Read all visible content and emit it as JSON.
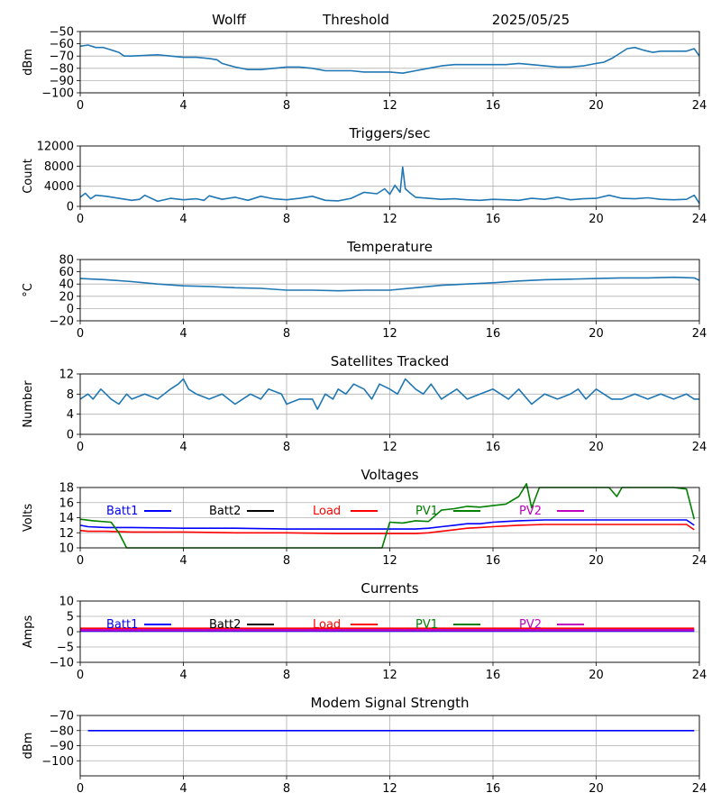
{
  "header": {
    "station": "Wolff",
    "mode": "Threshold",
    "date": "2025/05/25"
  },
  "colors": {
    "default_line": "#1f77b4",
    "grid": "#b0b0b0",
    "batt1": "#0000ff",
    "batt2": "#000000",
    "load": "#ff0000",
    "pv1": "#008000",
    "pv2": "#bf00bf"
  },
  "chart_data": [
    {
      "id": "threshold",
      "type": "line",
      "title": "",
      "ylabel": "dBm",
      "xlim": [
        0,
        24
      ],
      "ylim": [
        -100,
        -50
      ],
      "xticks": [
        "0",
        "4",
        "8",
        "12",
        "16",
        "20",
        "24"
      ],
      "yticks": [
        "−100",
        "−90",
        "−80",
        "−70",
        "−60",
        "−50"
      ],
      "grid": true,
      "series": [
        {
          "x": [
            0,
            0.3,
            0.6,
            0.9,
            1.2,
            1.5,
            1.7,
            2,
            3,
            4,
            4.5,
            5,
            5.3,
            5.5,
            6,
            6.5,
            7,
            7.5,
            8,
            8.5,
            9,
            9.5,
            10,
            10.5,
            11,
            11.5,
            12,
            12.5,
            13,
            13.5,
            14,
            14.5,
            15,
            15.5,
            16,
            16.5,
            17,
            17.5,
            18,
            18.5,
            19,
            19.5,
            20,
            20.3,
            20.6,
            20.9,
            21.2,
            21.5,
            21.8,
            22,
            22.2,
            22.5,
            23,
            23.5,
            23.8,
            24
          ],
          "values": [
            -62,
            -61,
            -63,
            -63,
            -65,
            -67,
            -70,
            -70,
            -69,
            -71,
            -71,
            -72,
            -73,
            -76,
            -79,
            -81,
            -81,
            -80,
            -79,
            -79,
            -80,
            -82,
            -82,
            -82,
            -83,
            -83,
            -83,
            -84,
            -82,
            -80,
            -78,
            -77,
            -77,
            -77,
            -77,
            -77,
            -76,
            -77,
            -78,
            -79,
            -79,
            -78,
            -76,
            -75,
            -72,
            -68,
            -64,
            -63,
            -65,
            -66,
            -67,
            -66,
            -66,
            -66,
            -64,
            -70
          ]
        }
      ]
    },
    {
      "id": "triggers",
      "type": "line",
      "title": "Triggers/sec",
      "ylabel": "Count",
      "xlim": [
        0,
        24
      ],
      "ylim": [
        0,
        12000
      ],
      "xticks": [
        "0",
        "4",
        "8",
        "12",
        "16",
        "20",
        "24"
      ],
      "yticks": [
        "0",
        "4000",
        "8000",
        "12000"
      ],
      "grid": true,
      "series": [
        {
          "x": [
            0,
            0.2,
            0.4,
            0.6,
            1,
            1.5,
            2,
            2.3,
            2.5,
            3,
            3.5,
            4,
            4.5,
            4.8,
            5,
            5.5,
            6,
            6.5,
            7,
            7.5,
            8,
            8.5,
            9,
            9.5,
            10,
            10.5,
            11,
            11.5,
            11.8,
            12,
            12.2,
            12.4,
            12.5,
            12.6,
            12.8,
            13,
            13.5,
            14,
            14.5,
            15,
            15.5,
            16,
            16.5,
            17,
            17.5,
            18,
            18.5,
            19,
            19.5,
            20,
            20.5,
            21,
            21.5,
            22,
            22.5,
            23,
            23.5,
            23.8,
            24
          ],
          "values": [
            1800,
            2600,
            1500,
            2200,
            2000,
            1600,
            1200,
            1400,
            2200,
            1000,
            1600,
            1300,
            1500,
            1200,
            2100,
            1400,
            1800,
            1200,
            2000,
            1500,
            1300,
            1600,
            2000,
            1200,
            1100,
            1600,
            2800,
            2500,
            3500,
            2400,
            4200,
            2800,
            7800,
            3500,
            2600,
            1800,
            1600,
            1400,
            1500,
            1300,
            1200,
            1400,
            1300,
            1200,
            1600,
            1400,
            1800,
            1300,
            1500,
            1600,
            2200,
            1600,
            1500,
            1700,
            1400,
            1300,
            1400,
            2200,
            600
          ]
        }
      ]
    },
    {
      "id": "temperature",
      "type": "line",
      "title": "Temperature",
      "ylabel": "°C",
      "xlim": [
        0,
        24
      ],
      "ylim": [
        -20,
        80
      ],
      "xticks": [
        "0",
        "4",
        "8",
        "12",
        "16",
        "20",
        "24"
      ],
      "yticks": [
        "−20",
        "0",
        "20",
        "40",
        "60",
        "80"
      ],
      "grid": true,
      "series": [
        {
          "x": [
            0,
            1,
            2,
            3,
            4,
            5,
            6,
            7,
            8,
            9,
            10,
            11,
            12,
            13,
            14,
            15,
            16,
            17,
            18,
            19,
            20,
            21,
            22,
            23,
            23.8,
            24
          ],
          "values": [
            49,
            47,
            44,
            40,
            37,
            36,
            34,
            33,
            30,
            30,
            29,
            30,
            30,
            34,
            38,
            40,
            42,
            45,
            47,
            48,
            49,
            50,
            50,
            51,
            50,
            46
          ]
        }
      ]
    },
    {
      "id": "satellites",
      "type": "line",
      "title": "Satellites Tracked",
      "ylabel": "Number",
      "xlim": [
        0,
        24
      ],
      "ylim": [
        0,
        12
      ],
      "xticks": [
        "0",
        "4",
        "8",
        "12",
        "16",
        "20",
        "24"
      ],
      "yticks": [
        "0",
        "4",
        "8",
        "12"
      ],
      "grid": true,
      "series": [
        {
          "x": [
            0,
            0.3,
            0.5,
            0.8,
            1,
            1.2,
            1.5,
            1.8,
            2,
            2.5,
            3,
            3.5,
            3.8,
            4,
            4.2,
            4.5,
            5,
            5.5,
            6,
            6.3,
            6.6,
            7,
            7.3,
            7.8,
            8,
            8.5,
            9,
            9.2,
            9.5,
            9.8,
            10,
            10.3,
            10.6,
            11,
            11.3,
            11.6,
            12,
            12.3,
            12.6,
            13,
            13.3,
            13.6,
            14,
            14.3,
            14.6,
            15,
            15.5,
            16,
            16.3,
            16.6,
            17,
            17.5,
            18,
            18.5,
            19,
            19.3,
            19.6,
            20,
            20.3,
            20.6,
            21,
            21.5,
            22,
            22.5,
            23,
            23.5,
            23.8,
            24
          ],
          "values": [
            7,
            8,
            7,
            9,
            8,
            7,
            6,
            8,
            7,
            8,
            7,
            9,
            10,
            11,
            9,
            8,
            7,
            8,
            6,
            7,
            8,
            7,
            9,
            8,
            6,
            7,
            7,
            5,
            8,
            7,
            9,
            8,
            10,
            9,
            7,
            10,
            9,
            8,
            11,
            9,
            8,
            10,
            7,
            8,
            9,
            7,
            8,
            9,
            8,
            7,
            9,
            6,
            8,
            7,
            8,
            9,
            7,
            9,
            8,
            7,
            7,
            8,
            7,
            8,
            7,
            8,
            7,
            7
          ]
        }
      ]
    },
    {
      "id": "voltages",
      "type": "line",
      "title": "Voltages",
      "ylabel": "Volts",
      "xlim": [
        0,
        24
      ],
      "ylim": [
        10,
        18
      ],
      "xticks": [
        "0",
        "4",
        "8",
        "12",
        "16",
        "20",
        "24"
      ],
      "yticks": [
        "10",
        "12",
        "14",
        "16",
        "18"
      ],
      "grid": true,
      "legend": "top",
      "series": [
        {
          "name": "Batt1",
          "color_key": "batt1",
          "x": [
            0,
            0.3,
            1,
            2,
            4,
            6,
            8,
            10,
            12,
            13,
            13.5,
            14,
            14.5,
            15,
            15.5,
            16,
            16.5,
            17,
            18,
            19,
            20,
            21,
            22,
            23,
            23.5,
            23.8
          ],
          "values": [
            13,
            12.8,
            12.7,
            12.7,
            12.6,
            12.6,
            12.5,
            12.5,
            12.5,
            12.5,
            12.6,
            12.8,
            13,
            13.2,
            13.2,
            13.4,
            13.5,
            13.6,
            13.7,
            13.7,
            13.7,
            13.7,
            13.7,
            13.7,
            13.7,
            13
          ]
        },
        {
          "name": "Batt2",
          "color_key": "batt2",
          "x": [],
          "values": []
        },
        {
          "name": "Load",
          "color_key": "load",
          "x": [
            0,
            0.3,
            1,
            2,
            4,
            6,
            8,
            10,
            12,
            13,
            13.5,
            14,
            14.5,
            15,
            15.5,
            16,
            16.5,
            17,
            18,
            19,
            20,
            21,
            22,
            23,
            23.5,
            23.8
          ],
          "values": [
            12.3,
            12.2,
            12.2,
            12.1,
            12.1,
            12,
            12,
            11.9,
            11.9,
            11.9,
            12,
            12.2,
            12.4,
            12.6,
            12.7,
            12.8,
            12.9,
            13,
            13.1,
            13.1,
            13.1,
            13.1,
            13.1,
            13.1,
            13.1,
            12.4
          ]
        },
        {
          "name": "PV1",
          "color_key": "pv1",
          "x": [
            0,
            0.5,
            1.2,
            1.5,
            1.8,
            11.7,
            12,
            12.5,
            13,
            13.5,
            14,
            14.5,
            15,
            15.5,
            16,
            16.5,
            17,
            17.3,
            17.5,
            17.8,
            18,
            18.5,
            19,
            20,
            20.5,
            20.8,
            21,
            22,
            23,
            23.5,
            23.8
          ],
          "values": [
            13.8,
            13.6,
            13.4,
            12,
            10,
            10,
            13.4,
            13.3,
            13.6,
            13.5,
            15,
            15.2,
            15.5,
            15.4,
            15.6,
            15.8,
            16.8,
            18.5,
            15.3,
            18,
            18,
            18,
            18,
            18,
            18,
            16.8,
            18,
            18,
            18,
            17.8,
            13.8
          ]
        },
        {
          "name": "PV2",
          "color_key": "pv2",
          "x": [],
          "values": []
        }
      ]
    },
    {
      "id": "currents",
      "type": "line",
      "title": "Currents",
      "ylabel": "Amps",
      "xlim": [
        0,
        24
      ],
      "ylim": [
        -10,
        10
      ],
      "xticks": [
        "0",
        "4",
        "8",
        "12",
        "16",
        "20",
        "24"
      ],
      "yticks": [
        "−10",
        "−5",
        "0",
        "5",
        "10"
      ],
      "grid": true,
      "legend": "top",
      "series": [
        {
          "name": "Batt1",
          "color_key": "batt1",
          "x": [
            0,
            23.8
          ],
          "values": [
            0.3,
            0.3
          ]
        },
        {
          "name": "Batt2",
          "color_key": "batt2",
          "x": [],
          "values": []
        },
        {
          "name": "Load",
          "color_key": "load",
          "x": [
            0,
            23.8
          ],
          "values": [
            1,
            1
          ]
        },
        {
          "name": "PV1",
          "color_key": "pv1",
          "x": [],
          "values": []
        },
        {
          "name": "PV2",
          "color_key": "pv2",
          "x": [
            0,
            23.8
          ],
          "values": [
            0.5,
            0.5
          ]
        }
      ]
    },
    {
      "id": "modem",
      "type": "line",
      "title": "Modem Signal Strength",
      "ylabel": "dBm",
      "xlim": [
        0,
        24
      ],
      "ylim": [
        -110,
        -70
      ],
      "xticks": [
        "0",
        "4",
        "8",
        "12",
        "16",
        "20",
        "24"
      ],
      "yticks": [
        "−100",
        "−90",
        "−80",
        "−70"
      ],
      "ytick_values": [
        -100,
        -90,
        -80,
        -70
      ],
      "grid": true,
      "series": [
        {
          "color_key": "batt1",
          "x": [
            0.3,
            23.8
          ],
          "values": [
            -80,
            -80
          ]
        }
      ]
    }
  ]
}
